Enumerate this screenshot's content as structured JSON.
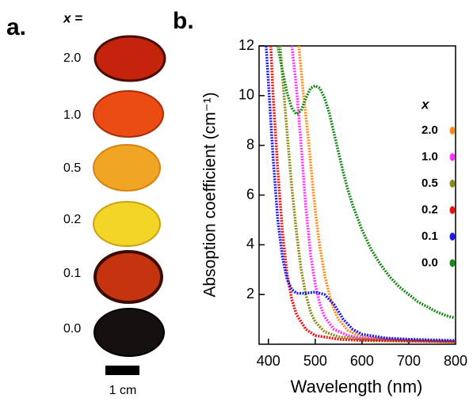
{
  "panel_a": {
    "label": "a.",
    "header": "x =",
    "samples": [
      "2.0",
      "1.0",
      "0.5",
      "0.2",
      "0.1",
      "0.0"
    ],
    "scale_label": "1 cm"
  },
  "chart_data": {
    "type": "line",
    "label": "b.",
    "x_label": "Wavelength (nm)",
    "y_label": "Absoption coefficient (cm⁻¹)",
    "legend_title": "x",
    "legend_position": "right",
    "xlim": [
      380,
      800
    ],
    "ylim": [
      0,
      12
    ],
    "xticks": [
      400,
      500,
      600,
      700,
      800
    ],
    "yticks": [
      2,
      4,
      6,
      8,
      10,
      12
    ],
    "series": [
      {
        "name": "2.0",
        "color": "#ff8c1a",
        "x": [
          465,
          470,
          475,
          480,
          485,
          490,
          495,
          500,
          505,
          510,
          520,
          530,
          540,
          550,
          570,
          600,
          650,
          700,
          800
        ],
        "values": [
          12,
          11,
          10,
          9.2,
          8.3,
          7.3,
          6.3,
          5.4,
          4.6,
          3.9,
          2.8,
          2.0,
          1.4,
          1.0,
          0.55,
          0.3,
          0.2,
          0.15,
          0.1
        ]
      },
      {
        "name": "1.0",
        "color": "#ff33ff",
        "x": [
          450,
          460,
          470,
          480,
          490,
          500,
          510,
          520,
          540,
          570,
          600,
          700,
          800
        ],
        "values": [
          12,
          10.3,
          8,
          5.5,
          3.6,
          2.4,
          1.6,
          1.1,
          0.6,
          0.35,
          0.25,
          0.15,
          0.1
        ]
      },
      {
        "name": "0.5",
        "color": "#8b8b1a",
        "x": [
          425,
          430,
          440,
          450,
          460,
          470,
          480,
          490,
          500,
          520,
          550,
          600,
          800
        ],
        "values": [
          12,
          10.8,
          8.5,
          6.3,
          4.5,
          3.0,
          2.0,
          1.3,
          0.9,
          0.5,
          0.3,
          0.2,
          0.1
        ]
      },
      {
        "name": "0.2",
        "color": "#ee1111",
        "x": [
          405,
          410,
          420,
          430,
          440,
          450,
          460,
          480,
          500,
          550,
          600,
          800
        ],
        "values": [
          12,
          10,
          7,
          4.5,
          2.8,
          1.8,
          1.2,
          0.6,
          0.35,
          0.2,
          0.15,
          0.1
        ]
      },
      {
        "name": "0.1",
        "color": "#1a1aee",
        "x": [
          395,
          400,
          410,
          420,
          430,
          440,
          450,
          460,
          480,
          500,
          520,
          540,
          560,
          580,
          600,
          650,
          700,
          800
        ],
        "values": [
          12,
          10.5,
          7.5,
          5,
          3.5,
          2.6,
          2.2,
          2.05,
          2.05,
          2.1,
          2.0,
          1.6,
          1.0,
          0.6,
          0.4,
          0.25,
          0.2,
          0.15
        ]
      },
      {
        "name": "0.0",
        "color": "#1a8a1a",
        "x": [
          420,
          430,
          440,
          450,
          460,
          470,
          480,
          490,
          500,
          510,
          520,
          530,
          540,
          550,
          560,
          570,
          580,
          590,
          600,
          620,
          640,
          660,
          680,
          700,
          720,
          740,
          760,
          780,
          800
        ],
        "values": [
          12,
          11,
          10.1,
          9.5,
          9.25,
          9.4,
          9.9,
          10.3,
          10.4,
          10.3,
          9.9,
          9.3,
          8.5,
          7.7,
          6.9,
          6.2,
          5.6,
          5.1,
          4.6,
          3.8,
          3.2,
          2.7,
          2.3,
          2.0,
          1.7,
          1.5,
          1.3,
          1.15,
          1.05
        ]
      }
    ]
  }
}
